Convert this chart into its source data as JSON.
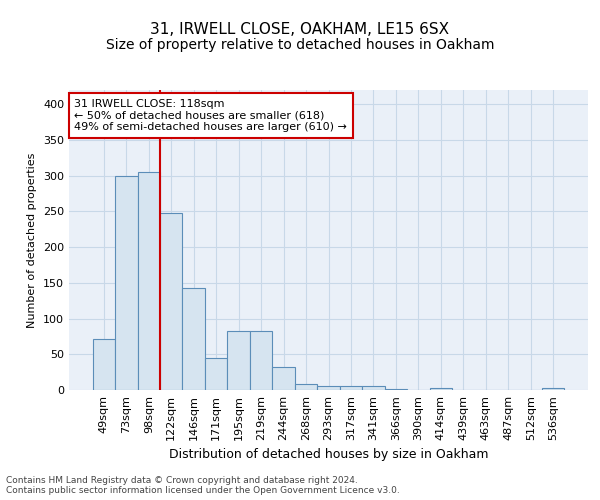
{
  "title1": "31, IRWELL CLOSE, OAKHAM, LE15 6SX",
  "title2": "Size of property relative to detached houses in Oakham",
  "xlabel": "Distribution of detached houses by size in Oakham",
  "ylabel": "Number of detached properties",
  "categories": [
    "49sqm",
    "73sqm",
    "98sqm",
    "122sqm",
    "146sqm",
    "171sqm",
    "195sqm",
    "219sqm",
    "244sqm",
    "268sqm",
    "293sqm",
    "317sqm",
    "341sqm",
    "366sqm",
    "390sqm",
    "414sqm",
    "439sqm",
    "463sqm",
    "487sqm",
    "512sqm",
    "536sqm"
  ],
  "values": [
    72,
    299,
    305,
    248,
    143,
    45,
    83,
    83,
    32,
    9,
    6,
    6,
    6,
    2,
    0,
    3,
    0,
    0,
    0,
    0,
    3
  ],
  "bar_color": "#d6e4f0",
  "bar_edge_color": "#5b8db8",
  "grid_color": "#c8d8e8",
  "vline_color": "#cc0000",
  "annotation_text": "31 IRWELL CLOSE: 118sqm\n← 50% of detached houses are smaller (618)\n49% of semi-detached houses are larger (610) →",
  "annotation_box_color": "white",
  "annotation_box_edge_color": "#cc0000",
  "footer": "Contains HM Land Registry data © Crown copyright and database right 2024.\nContains public sector information licensed under the Open Government Licence v3.0.",
  "ylim": [
    0,
    420
  ],
  "yticks": [
    0,
    50,
    100,
    150,
    200,
    250,
    300,
    350,
    400
  ],
  "title1_fontsize": 11,
  "title2_fontsize": 10,
  "xlabel_fontsize": 9,
  "ylabel_fontsize": 8,
  "tick_fontsize": 8,
  "footer_fontsize": 6.5,
  "background_color": "#eaf0f8"
}
